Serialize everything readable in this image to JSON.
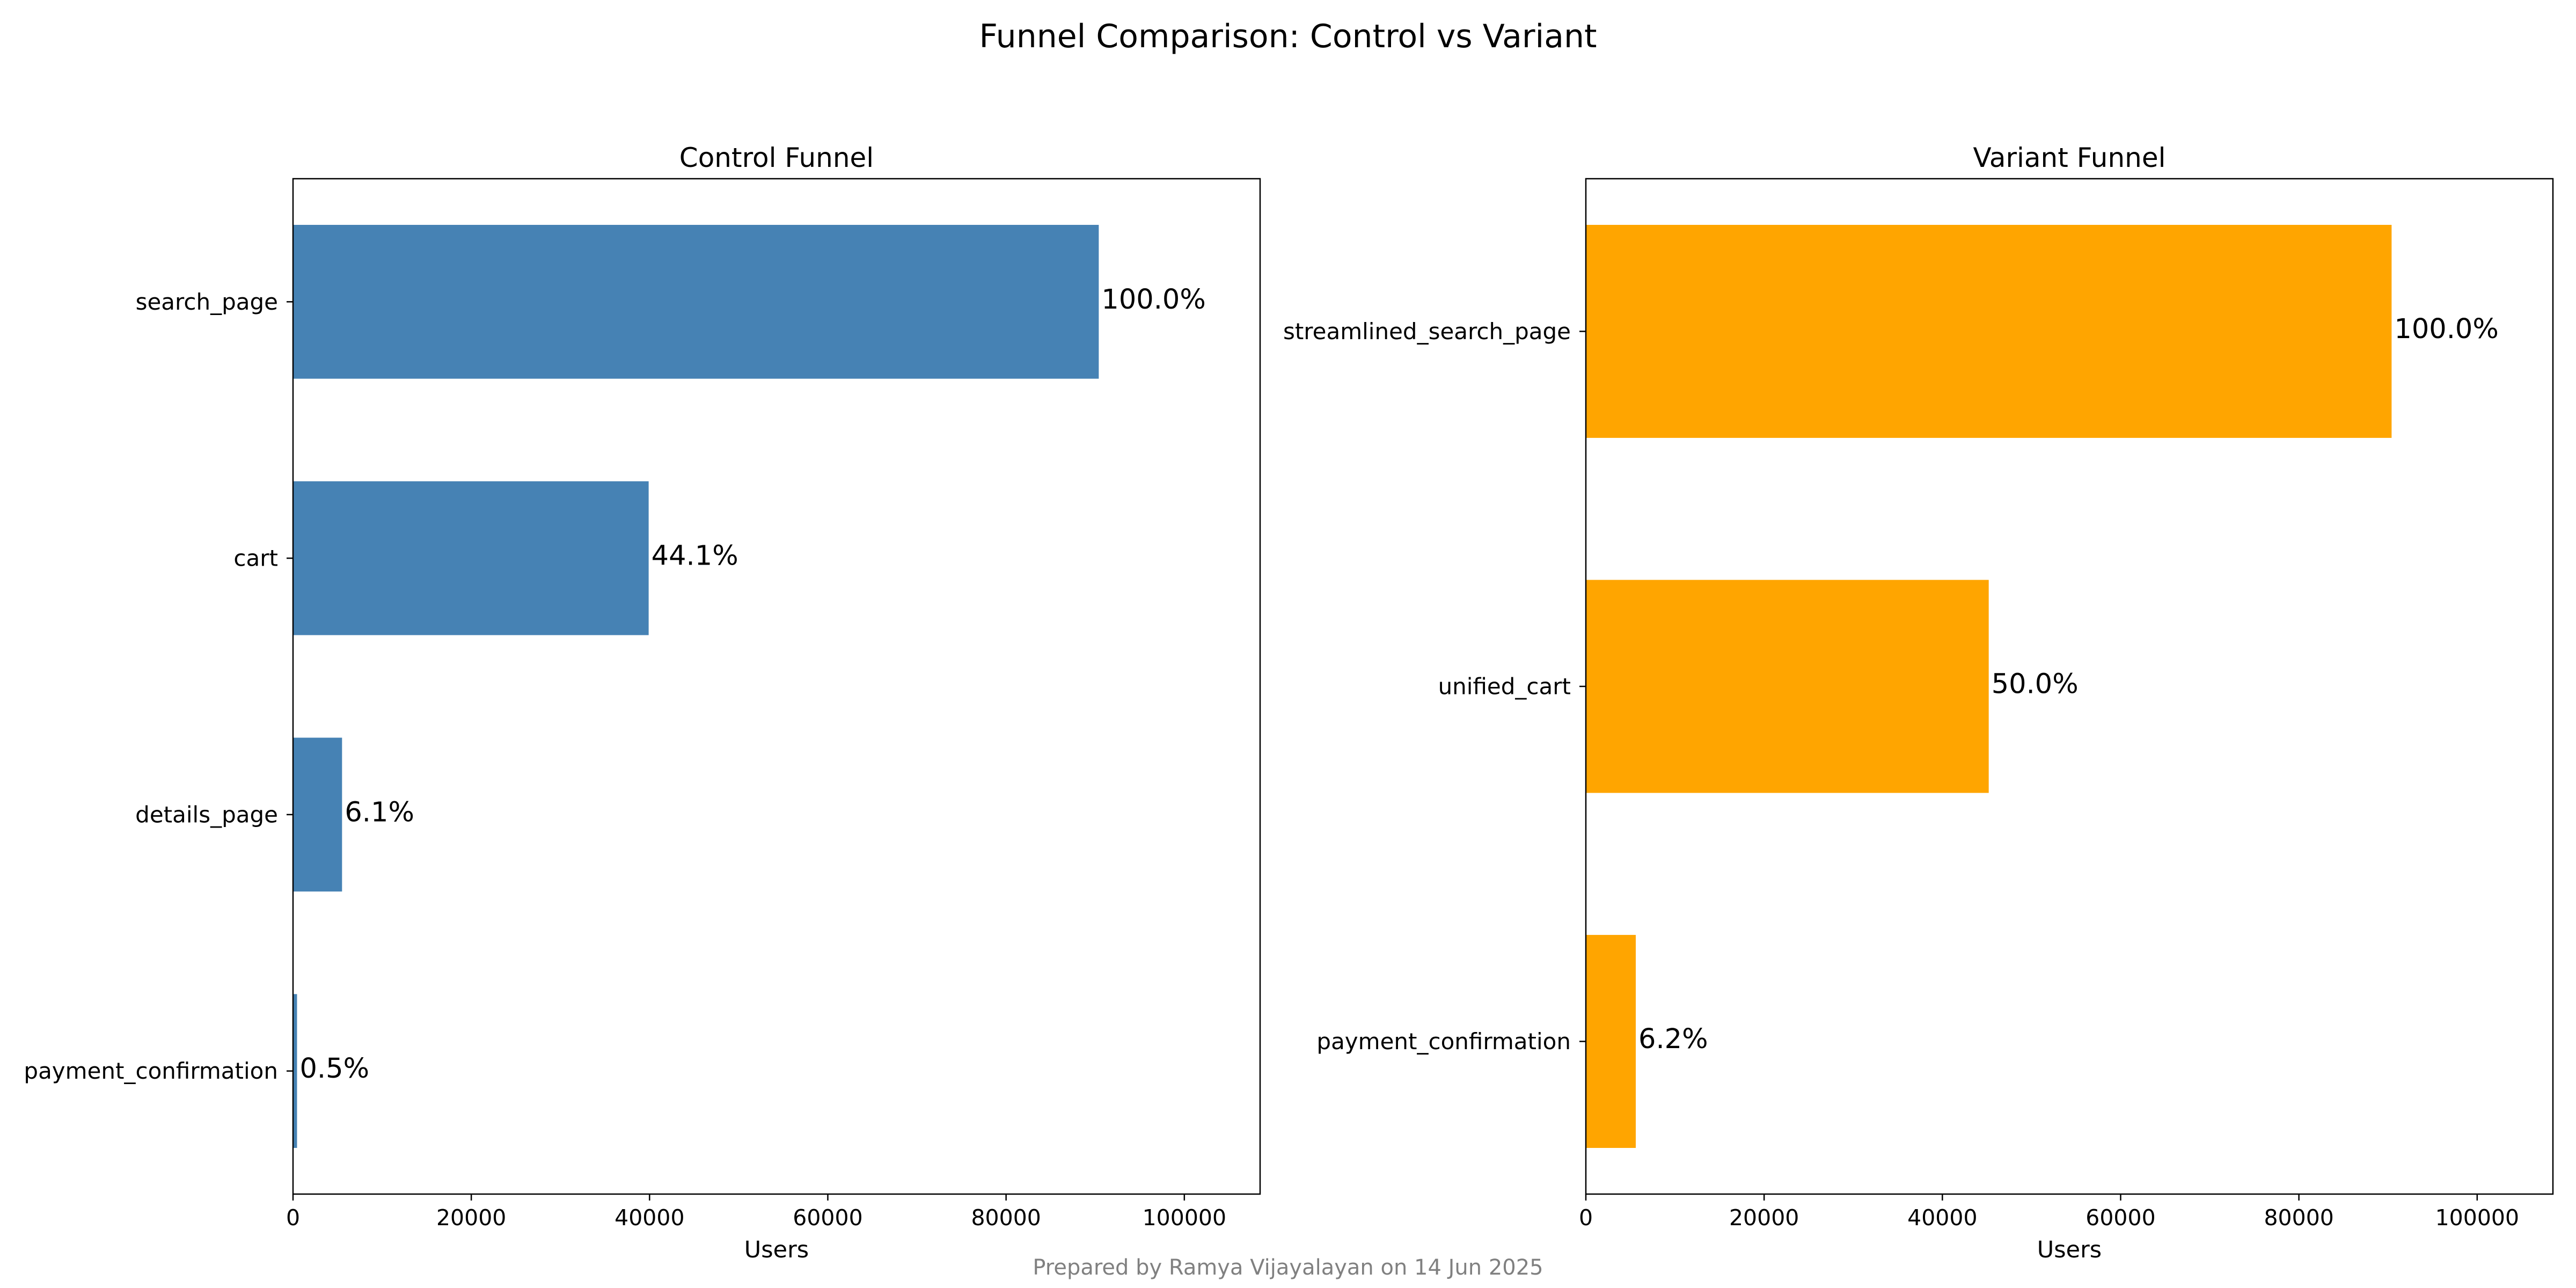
{
  "figure": {
    "title": "Funnel Comparison: Control vs Variant",
    "footer": "Prepared by Ramya Vijayalayan on 14 Jun 2025"
  },
  "chart_data": [
    {
      "type": "bar",
      "orientation": "horizontal",
      "title": "Control Funnel",
      "xlabel": "Users",
      "ylabel": "",
      "xlim": [
        0,
        108500
      ],
      "xticks": [
        0,
        20000,
        40000,
        60000,
        80000,
        100000
      ],
      "color": "#4682b4",
      "grid": false,
      "categories": [
        "search_page",
        "cart",
        "details_page",
        "payment_confirmation"
      ],
      "values": [
        90400,
        39900,
        5500,
        450
      ],
      "labels": [
        "100.0%",
        "44.1%",
        "6.1%",
        "0.5%"
      ]
    },
    {
      "type": "bar",
      "orientation": "horizontal",
      "title": "Variant Funnel",
      "xlabel": "Users",
      "ylabel": "",
      "xlim": [
        0,
        108500
      ],
      "xticks": [
        0,
        20000,
        40000,
        60000,
        80000,
        100000
      ],
      "color": "#ffa500",
      "grid": false,
      "categories": [
        "streamlined_search_page",
        "unified_cart",
        "payment_confirmation"
      ],
      "values": [
        90400,
        45200,
        5600
      ],
      "labels": [
        "100.0%",
        "50.0%",
        "6.2%"
      ]
    }
  ]
}
